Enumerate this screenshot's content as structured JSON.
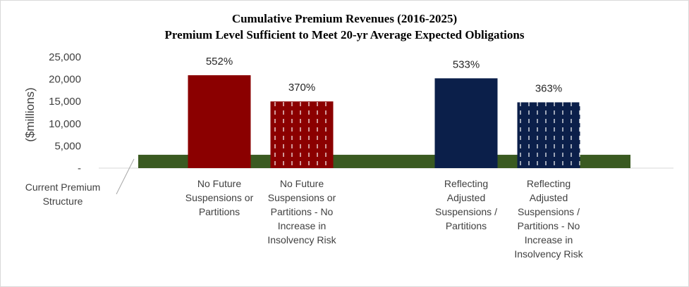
{
  "chart_data": {
    "type": "bar",
    "title": "Cumulative Premium Revenues (2016-2025)",
    "subtitle": "Premium Level Sufficient to Meet 20-yr Average Expected Obligations",
    "ylabel": "($millions)",
    "ylim": [
      0,
      25000
    ],
    "yticks": [
      "-",
      "5,000",
      "10,000",
      "15,000",
      "20,000",
      "25,000"
    ],
    "ytick_values": [
      0,
      5000,
      10000,
      15000,
      20000,
      25000
    ],
    "grid": false,
    "baseline": {
      "label": "Current Premium Structure",
      "value": 3000,
      "color": "#3a5a21"
    },
    "categories": [
      "No Future Suspensions or Partitions",
      "No Future Suspensions or Partitions - No Increase in Insolvency Risk",
      "Reflecting Adjusted Suspensions / Partitions",
      "Reflecting Adjusted Suspensions / Partitions - No Increase in Insolvency Risk"
    ],
    "category_lines": [
      [
        "No Future",
        "Suspensions or",
        "Partitions"
      ],
      [
        "No Future",
        "Suspensions or",
        "Partitions - No",
        "Increase in",
        "Insolvency Risk"
      ],
      [
        "Reflecting",
        "Adjusted",
        "Suspensions /",
        "Partitions"
      ],
      [
        "Reflecting",
        "Adjusted",
        "Suspensions /",
        "Partitions - No",
        "Increase in",
        "Insolvency Risk"
      ]
    ],
    "values": [
      20900,
      15000,
      20200,
      14800
    ],
    "data_labels": [
      "552%",
      "370%",
      "533%",
      "363%"
    ],
    "colors": [
      "#8b0000",
      "#8b0000",
      "#0b1f4a",
      "#0b1f4a"
    ],
    "patterned": [
      false,
      true,
      false,
      true
    ]
  }
}
